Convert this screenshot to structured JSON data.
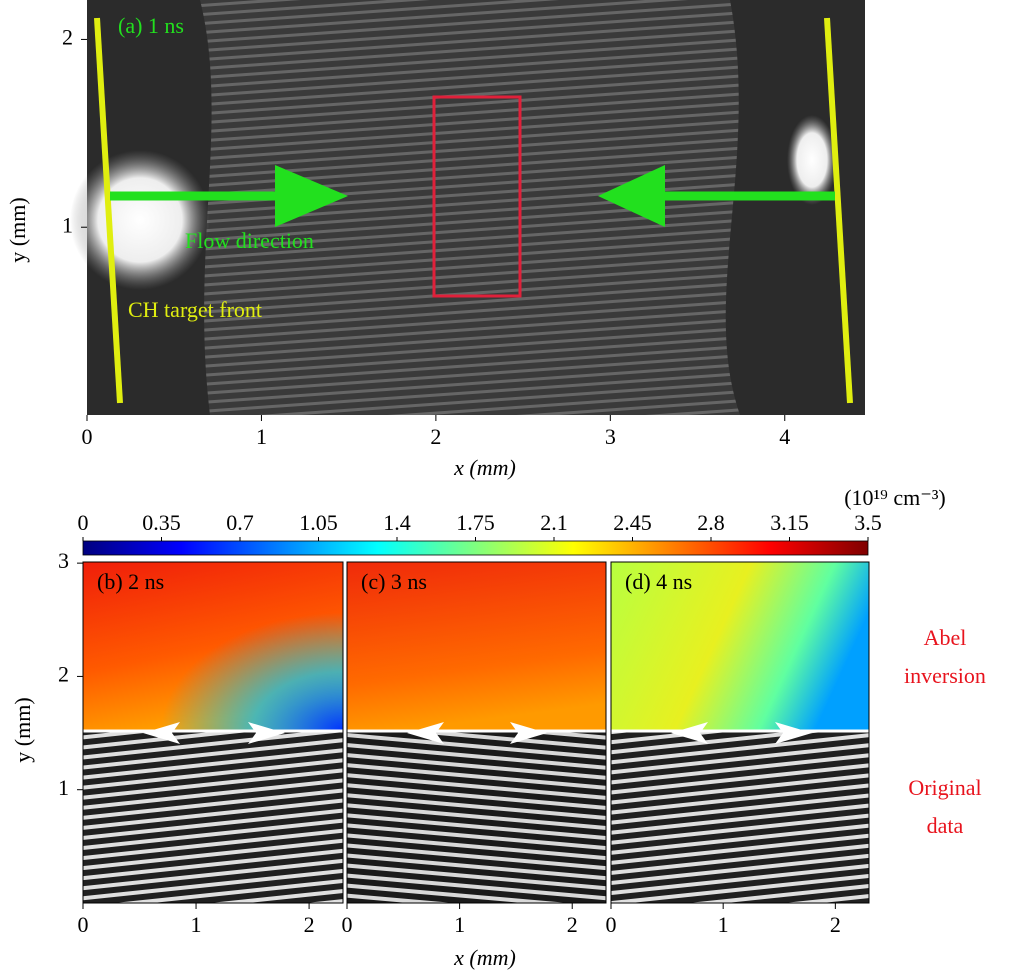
{
  "chart_data": [
    {
      "type": "image",
      "title": "(a) 1 ns",
      "x_label": "x (mm)",
      "y_label": "y (mm)",
      "xlim": [
        0,
        4.46
      ],
      "ylim": [
        0,
        2.21
      ],
      "xticks": [
        0,
        1,
        2,
        3,
        4
      ],
      "yticks": [
        1,
        2
      ],
      "annotations": [
        "Flow direction",
        "CH target front"
      ]
    },
    {
      "type": "colorbar",
      "label": "(10¹⁹ cm⁻³)",
      "xlim": [
        0,
        3.5
      ],
      "xticks": [
        0,
        0.35,
        0.7,
        1.05,
        1.4,
        1.75,
        2.1,
        2.45,
        2.8,
        3.15,
        3.5
      ]
    },
    {
      "type": "image",
      "title": "(b) 2 ns",
      "y_label": "y (mm)",
      "xlim": [
        0,
        2.3
      ],
      "ylim": [
        0,
        3.01
      ],
      "xticks": [
        0,
        1,
        2
      ],
      "yticks": [
        1,
        2,
        3
      ]
    },
    {
      "type": "image",
      "title": "(c) 3 ns",
      "x_label": "x (mm)",
      "xlim": [
        0,
        2.3
      ],
      "ylim": [
        0,
        3.01
      ],
      "xticks": [
        0,
        1,
        2
      ]
    },
    {
      "type": "image",
      "title": "(d) 4 ns",
      "xlim": [
        0,
        2.3
      ],
      "ylim": [
        0,
        3.01
      ],
      "xticks": [
        0,
        1,
        2
      ],
      "side_labels": [
        [
          "Abel",
          "inversion"
        ],
        [
          "Original",
          "data"
        ]
      ]
    }
  ]
}
